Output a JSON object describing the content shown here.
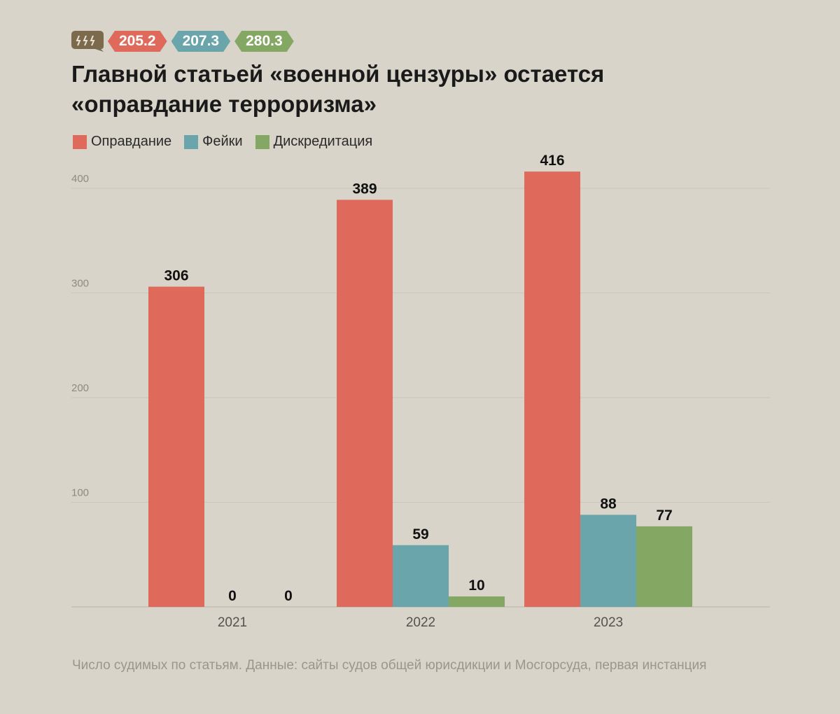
{
  "header": {
    "logo_icon": "lightning-bolts-speech-bubble",
    "badges": [
      {
        "label": "205.2",
        "color": "#df6a5c"
      },
      {
        "label": "207.3",
        "color": "#6aa5ab"
      },
      {
        "label": "280.3",
        "color": "#84a763"
      }
    ]
  },
  "title_line1": "Главной статьей «военной цензуры» остается",
  "title_line2": "«оправдание терроризма»",
  "legend": [
    {
      "label": "Оправдание",
      "color": "#df6a5c"
    },
    {
      "label": "Фейки",
      "color": "#6aa5ab"
    },
    {
      "label": "Дискредитация",
      "color": "#84a763"
    }
  ],
  "footnote": "Число судимых по статьям. Данные: сайты судов общей юрисдикции и Мосгорсуда, первая инстанция",
  "colors": {
    "background": "#d8d4c9",
    "gridline": "#c9c5ba",
    "axis_text": "#8e8a81"
  },
  "chart_data": {
    "type": "bar",
    "categories": [
      "2021",
      "2022",
      "2023"
    ],
    "series": [
      {
        "name": "Оправдание",
        "values": [
          306,
          389,
          416
        ],
        "color": "#df6a5c"
      },
      {
        "name": "Фейки",
        "values": [
          0,
          59,
          88
        ],
        "color": "#6aa5ab"
      },
      {
        "name": "Дискредитация",
        "values": [
          0,
          10,
          77
        ],
        "color": "#84a763"
      }
    ],
    "yticks": [
      100,
      200,
      300,
      400
    ],
    "ylim": [
      0,
      416
    ],
    "grid": true,
    "legend_position": "top-left",
    "data_labels": true
  }
}
